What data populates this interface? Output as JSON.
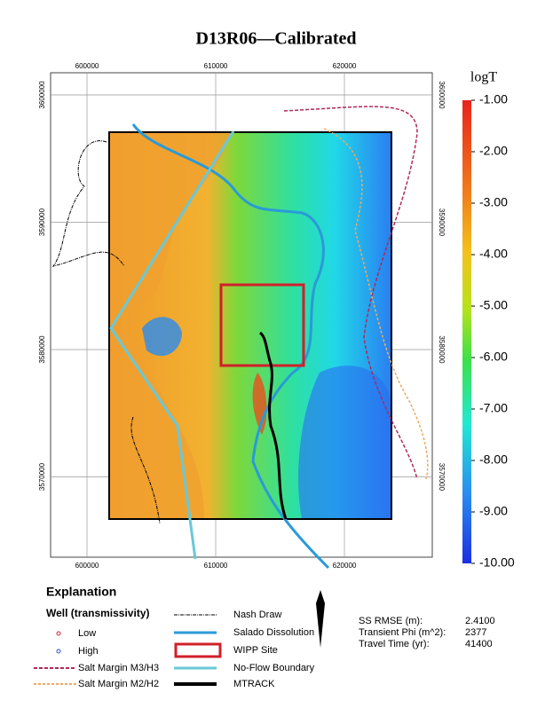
{
  "title": "D13R06—Calibrated",
  "map": {
    "xticks": [
      600000,
      610000,
      620000
    ],
    "yticks": [
      3600000,
      3590000,
      3580000,
      3570000
    ]
  },
  "colorbar": {
    "title": "logT",
    "ticks": [
      {
        "value": -1,
        "label": "-1.00"
      },
      {
        "value": -2,
        "label": "-2.00"
      },
      {
        "value": -3,
        "label": "-3.00"
      },
      {
        "value": -4,
        "label": "-4.00"
      },
      {
        "value": -5,
        "label": "-5.00"
      },
      {
        "value": -6,
        "label": "-6.00"
      },
      {
        "value": -7,
        "label": "-7.00"
      },
      {
        "value": -8,
        "label": "-8.00"
      },
      {
        "value": -9,
        "label": "-9.00"
      },
      {
        "value": -10,
        "label": "-10.00"
      }
    ]
  },
  "legend": {
    "title": "Explanation",
    "well_title": "Well (transmissivity)",
    "items": [
      "Low",
      "High",
      "Salt Margin M3/H3",
      "Salt Margin M2/H2",
      "Nash Draw",
      "Salado Dissolution",
      "WIPP Site",
      "No-Flow Boundary",
      "MTRACK"
    ]
  },
  "stats": [
    {
      "label": "SS RMSE (m):",
      "value": "2.4100"
    },
    {
      "label": "Transient Phi (m^2):",
      "value": "2377"
    },
    {
      "label": "Travel Time (yr):",
      "value": "41400"
    }
  ]
}
